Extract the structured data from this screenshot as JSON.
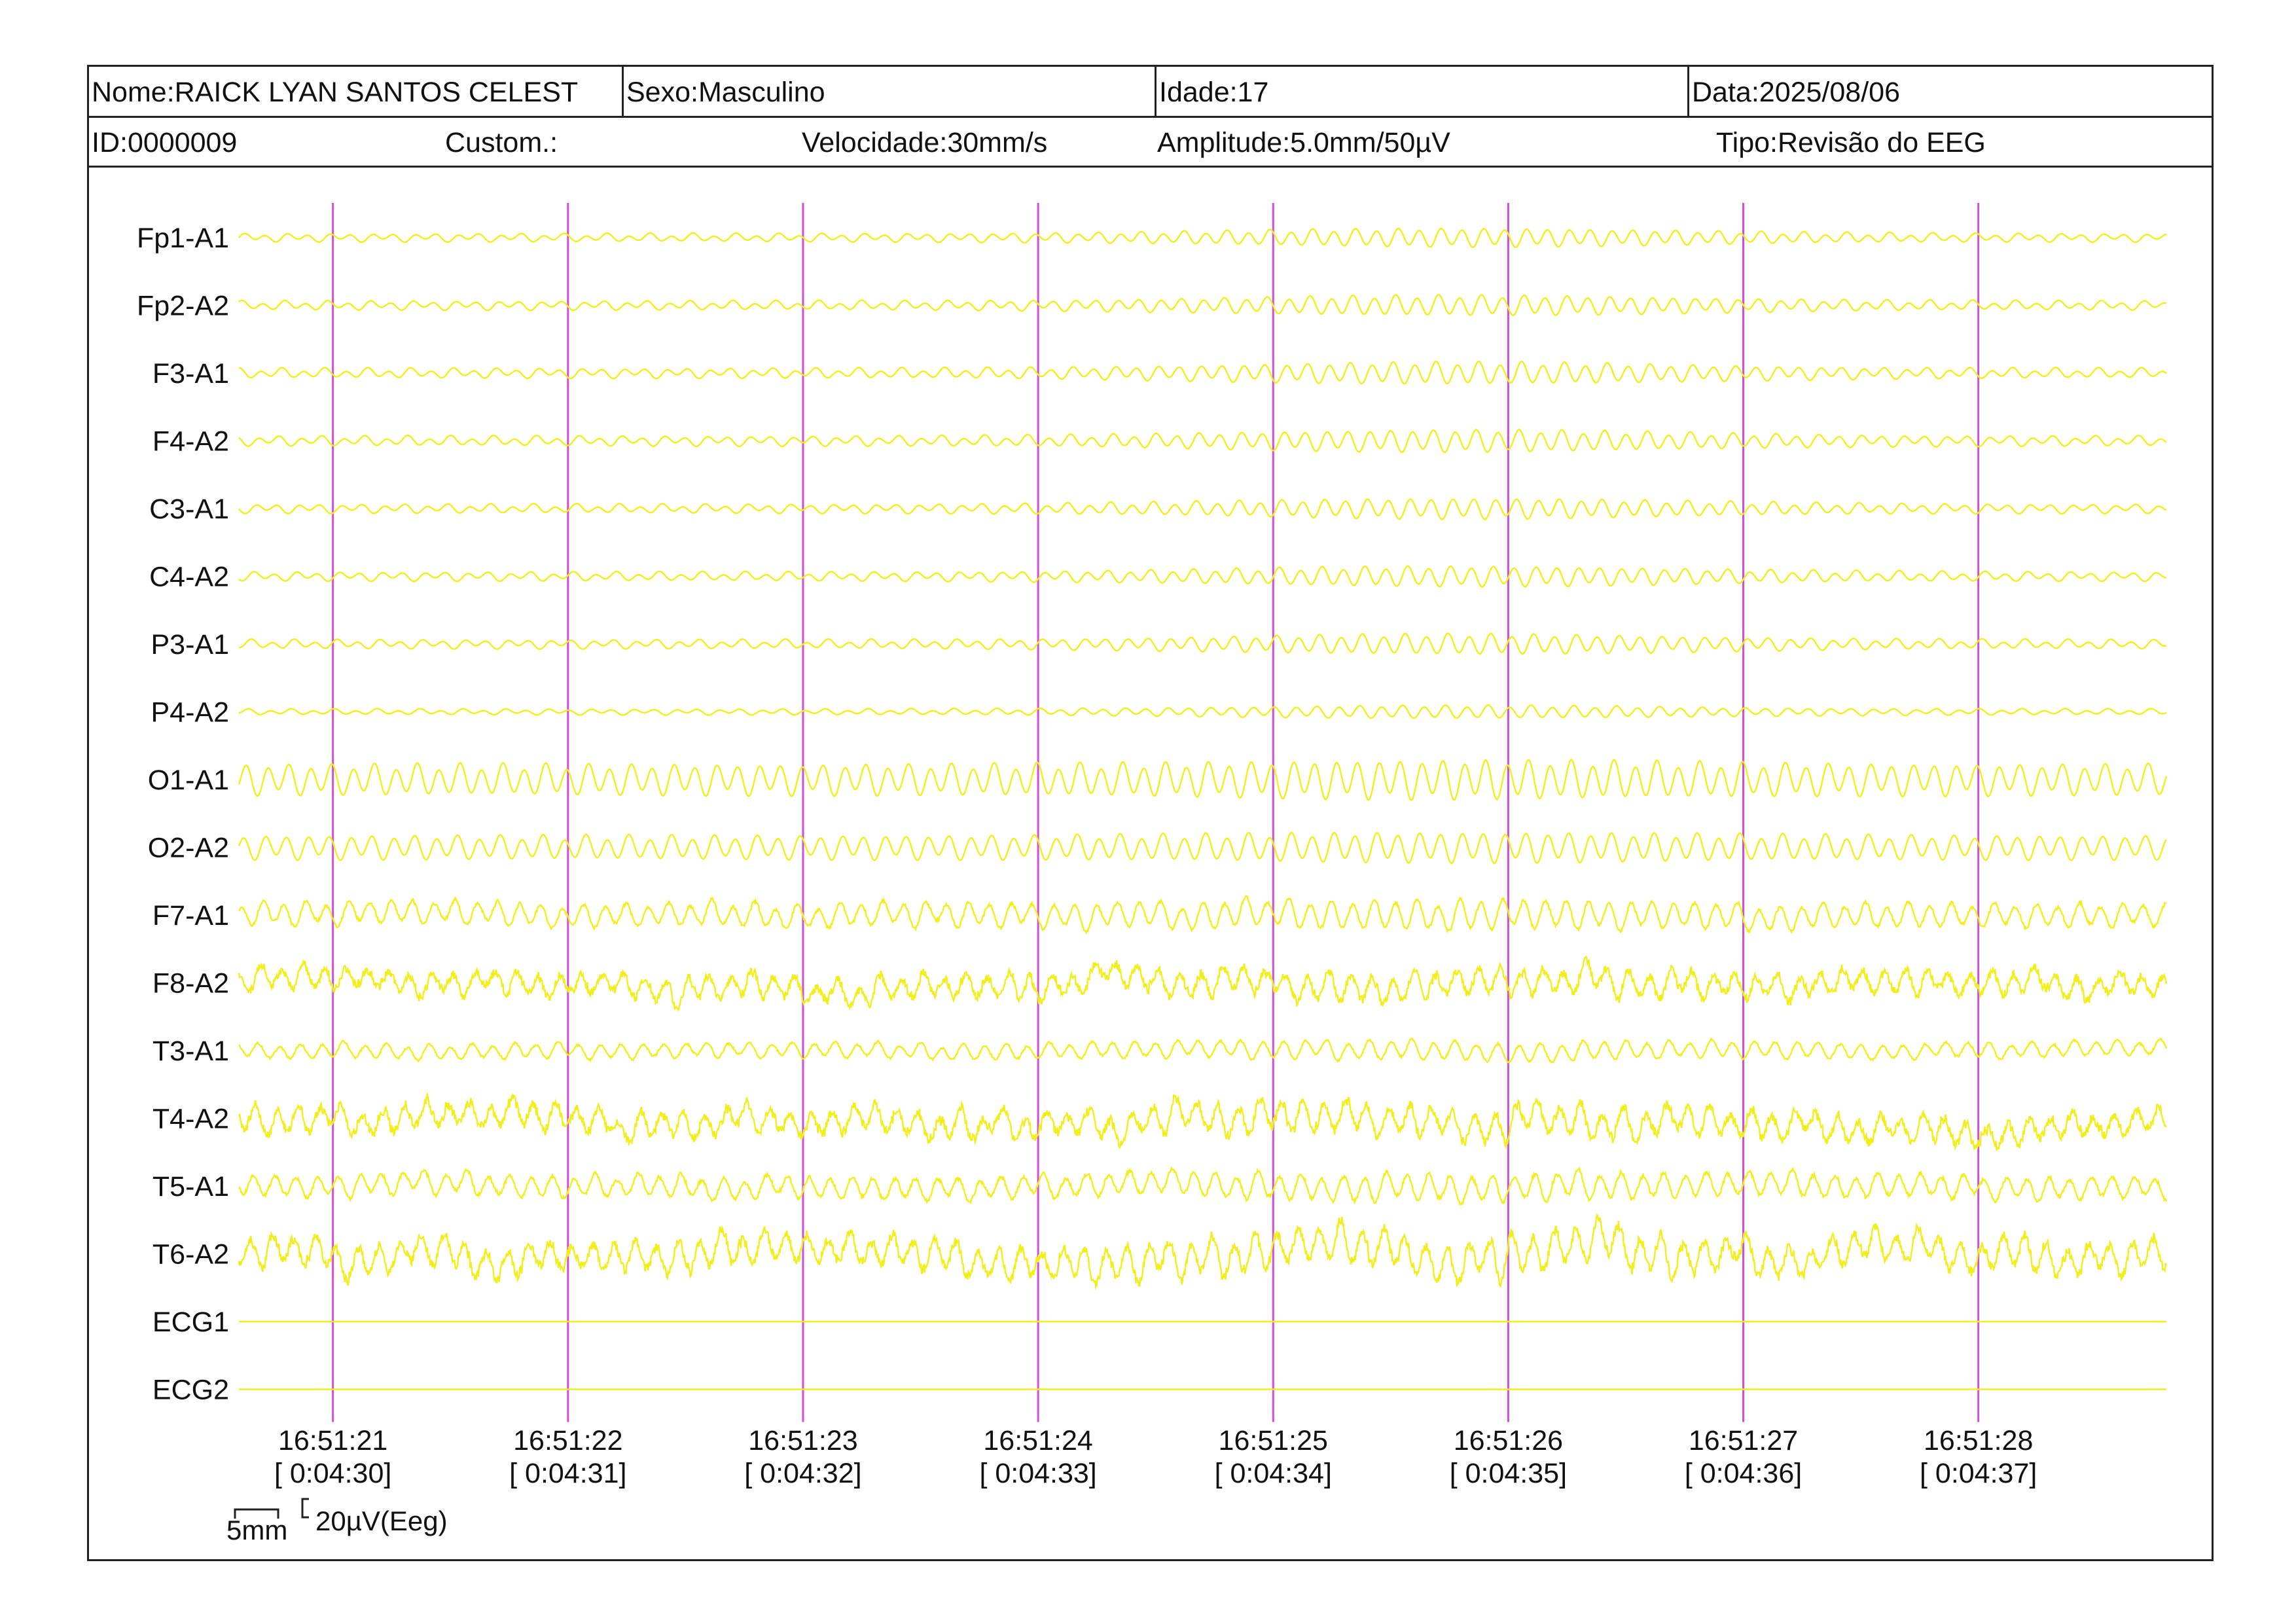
{
  "header": {
    "nome": "Nome:RAICK LYAN SANTOS CELEST",
    "sexo": "Sexo:Masculino",
    "idade": "Idade:17",
    "data": "Data:2025/08/06",
    "id": "ID:0000009",
    "custom": "Custom.:",
    "velocidade": "Velocidade:30mm/s",
    "amplitude": "Amplitude:5.0mm/50µV",
    "tipo": "Tipo:Revisão do EEG"
  },
  "scale": {
    "time_label": "5mm",
    "amp_label": "20µV(Eeg)"
  },
  "colors": {
    "trace": "#f2ee1c",
    "marker": "#d04fd8",
    "frame": "#222222",
    "background": "#ffffff"
  },
  "chart_data": {
    "type": "line",
    "channels": [
      "Fp1-A1",
      "Fp2-A2",
      "F3-A1",
      "F4-A2",
      "C3-A1",
      "C4-A2",
      "P3-A1",
      "P4-A2",
      "O1-A1",
      "O2-A2",
      "F7-A1",
      "F8-A2",
      "T3-A1",
      "T4-A2",
      "T5-A1",
      "T6-A2",
      "ECG1",
      "ECG2"
    ],
    "x_ticks": [
      {
        "clock": "16:51:21",
        "elapsed": "[ 0:04:30]"
      },
      {
        "clock": "16:51:22",
        "elapsed": "[ 0:04:31]"
      },
      {
        "clock": "16:51:23",
        "elapsed": "[ 0:04:32]"
      },
      {
        "clock": "16:51:24",
        "elapsed": "[ 0:04:33]"
      },
      {
        "clock": "16:51:25",
        "elapsed": "[ 0:04:34]"
      },
      {
        "clock": "16:51:26",
        "elapsed": "[ 0:04:35]"
      },
      {
        "clock": "16:51:27",
        "elapsed": "[ 0:04:36]"
      },
      {
        "clock": "16:51:28",
        "elapsed": "[ 0:04:37]"
      }
    ],
    "time_range_s": [
      0,
      8.2
    ],
    "second_markers_s": [
      0.4,
      1.4,
      2.4,
      3.4,
      4.4,
      5.4,
      6.4,
      7.4
    ],
    "grid": false
  }
}
